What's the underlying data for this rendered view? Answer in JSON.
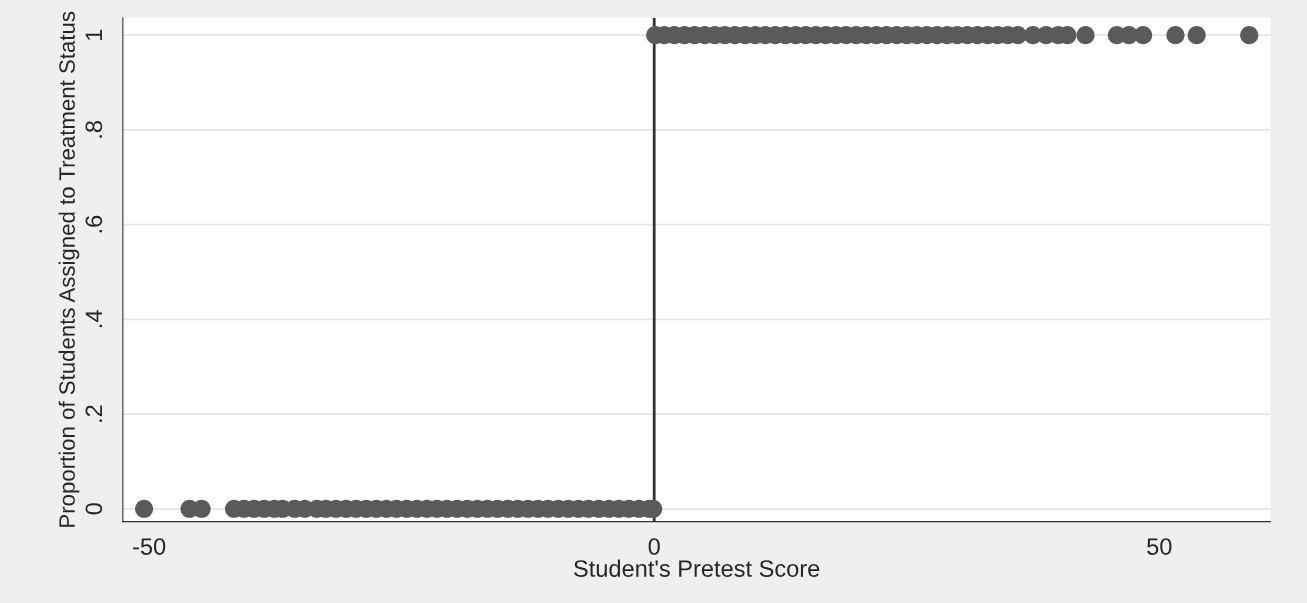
{
  "chart_data": {
    "type": "scatter",
    "xlabel": "Student's Pretest Score",
    "ylabel": "Proportion of Students Assigned to Treatment Status",
    "x": [
      -50.5,
      -46,
      -44.8,
      -41.6,
      -40.6,
      -39.6,
      -38.6,
      -37.6,
      -36.8,
      -35.6,
      -34.6,
      -33.4,
      -32.5,
      -31.5,
      -30.5,
      -29.5,
      -28.5,
      -27.5,
      -26.5,
      -25.5,
      -24.5,
      -23.5,
      -22.5,
      -21.5,
      -20.5,
      -19.5,
      -18.5,
      -17.5,
      -16.5,
      -15.5,
      -14.5,
      -13.5,
      -12.5,
      -11.5,
      -10.5,
      -9.5,
      -8.5,
      -7.5,
      -6.5,
      -5.5,
      -4.5,
      -3.5,
      -2.5,
      -1.5,
      -0.5,
      -0.1,
      0.1,
      1,
      2,
      3,
      4,
      5,
      6,
      7,
      8,
      9,
      10,
      11,
      12,
      13,
      14,
      15,
      16,
      17,
      18,
      19,
      20,
      21,
      22,
      23,
      24,
      25,
      26,
      27,
      28,
      29,
      30,
      31,
      32,
      33,
      34,
      35,
      36,
      37.5,
      38.8,
      40,
      40.9,
      42.7,
      45.8,
      47,
      48.4,
      51.6,
      53.7,
      58.9
    ],
    "values": [
      0,
      0,
      0,
      0,
      0,
      0,
      0,
      0,
      0,
      0,
      0,
      0,
      0,
      0,
      0,
      0,
      0,
      0,
      0,
      0,
      0,
      0,
      0,
      0,
      0,
      0,
      0,
      0,
      0,
      0,
      0,
      0,
      0,
      0,
      0,
      0,
      0,
      0,
      0,
      0,
      0,
      0,
      0,
      0,
      0,
      0,
      1,
      1,
      1,
      1,
      1,
      1,
      1,
      1,
      1,
      1,
      1,
      1,
      1,
      1,
      1,
      1,
      1,
      1,
      1,
      1,
      1,
      1,
      1,
      1,
      1,
      1,
      1,
      1,
      1,
      1,
      1,
      1,
      1,
      1,
      1,
      1,
      1,
      1,
      1,
      1,
      1,
      1,
      1,
      1,
      1,
      1,
      1,
      1
    ],
    "color": "#5a5a5a",
    "marker": "circle",
    "xlim": [
      -52.6,
      61
    ],
    "xticks": [
      -50,
      0,
      50
    ],
    "ylim": [
      -0.027,
      1.036
    ],
    "yticks": [
      0,
      {
        "value": 0.2,
        "label": ".2"
      },
      {
        "value": 0.4,
        "label": ".4"
      },
      {
        "value": 0.6,
        "label": ".6"
      },
      {
        "value": 0.8,
        "label": ".8"
      },
      1
    ],
    "ref_lines": [
      {
        "axis": "x",
        "value": 0,
        "color": "#333333",
        "line_style": "solid"
      }
    ],
    "grid": "y"
  }
}
